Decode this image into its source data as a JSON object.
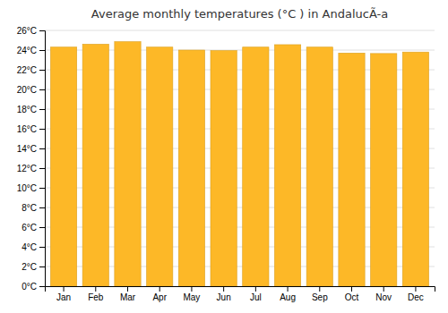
{
  "chart_data": {
    "type": "bar",
    "title": "Average monthly temperatures (°C ) in AndalucÃ-a",
    "categories": [
      "Jan",
      "Feb",
      "Mar",
      "Apr",
      "May",
      "Jun",
      "Jul",
      "Aug",
      "Sep",
      "Oct",
      "Nov",
      "Dec"
    ],
    "values": [
      24.3,
      24.6,
      24.85,
      24.3,
      24.0,
      23.95,
      24.3,
      24.55,
      24.3,
      23.7,
      23.65,
      23.8
    ],
    "color": "#FDB827",
    "ylim": [
      0,
      26
    ],
    "yticks": [
      {
        "value": 0,
        "label": "0°C"
      },
      {
        "value": 2,
        "label": "2°C"
      },
      {
        "value": 4,
        "label": "4°C"
      },
      {
        "value": 6,
        "label": "6°C"
      },
      {
        "value": 8,
        "label": "8°C"
      },
      {
        "value": 10,
        "label": "10°C"
      },
      {
        "value": 12,
        "label": "12°C"
      },
      {
        "value": 14,
        "label": "14°C"
      },
      {
        "value": 16,
        "label": "16°C"
      },
      {
        "value": 18,
        "label": "18°C"
      },
      {
        "value": 20,
        "label": "20°C"
      },
      {
        "value": 22,
        "label": "22°C"
      },
      {
        "value": 24,
        "label": "24°C"
      },
      {
        "value": 26,
        "label": "26°C"
      }
    ],
    "grid": true
  }
}
